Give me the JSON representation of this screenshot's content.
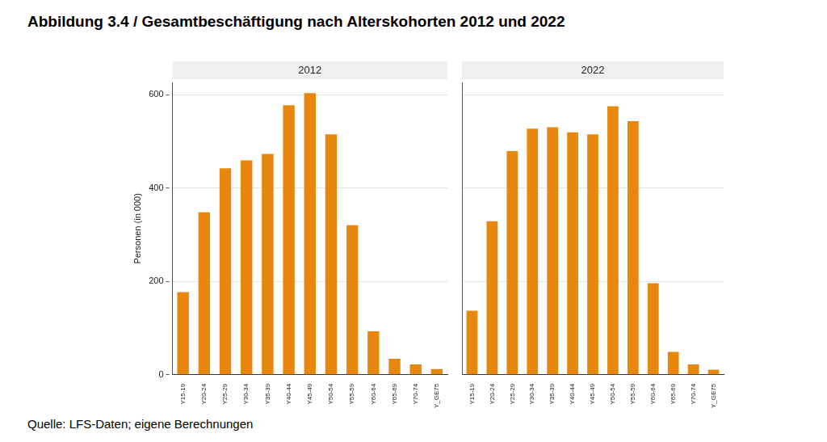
{
  "title": "Abbildung 3.4 / Gesamtbeschäftigung nach Alterskohorten 2012 und 2022",
  "source": "Quelle: LFS-Daten; eigene Berechnungen",
  "chart_data": [
    {
      "type": "bar",
      "title": "2012",
      "y_label": "Personen (in 000)",
      "categories": [
        "Y15-19",
        "Y20-24",
        "Y25-29",
        "Y30-34",
        "Y35-39",
        "Y40-44",
        "Y45-49",
        "Y50-54",
        "Y55-59",
        "Y60-64",
        "Y65-69",
        "Y70-74",
        "Y_GE75"
      ],
      "values": [
        177,
        348,
        442,
        459,
        473,
        577,
        603,
        515,
        320,
        93,
        34,
        22,
        12
      ],
      "color": "#e8870e",
      "ylim": [
        0,
        626
      ],
      "yticks": [
        0,
        200,
        400,
        600
      ],
      "grid": true
    },
    {
      "type": "bar",
      "title": "2022",
      "categories": [
        "Y15-19",
        "Y20-24",
        "Y25-29",
        "Y30-34",
        "Y35-39",
        "Y40-44",
        "Y45-49",
        "Y50-54",
        "Y55-59",
        "Y60-64",
        "Y65-69",
        "Y70-74",
        "Y_GE75"
      ],
      "values": [
        137,
        329,
        479,
        527,
        530,
        519,
        515,
        575,
        543,
        196,
        49,
        22,
        11
      ],
      "color": "#e8870e",
      "ylim": [
        0,
        626
      ],
      "yticks": [
        0,
        200,
        400,
        600
      ],
      "grid": true,
      "tick_labels": "x"
    }
  ]
}
